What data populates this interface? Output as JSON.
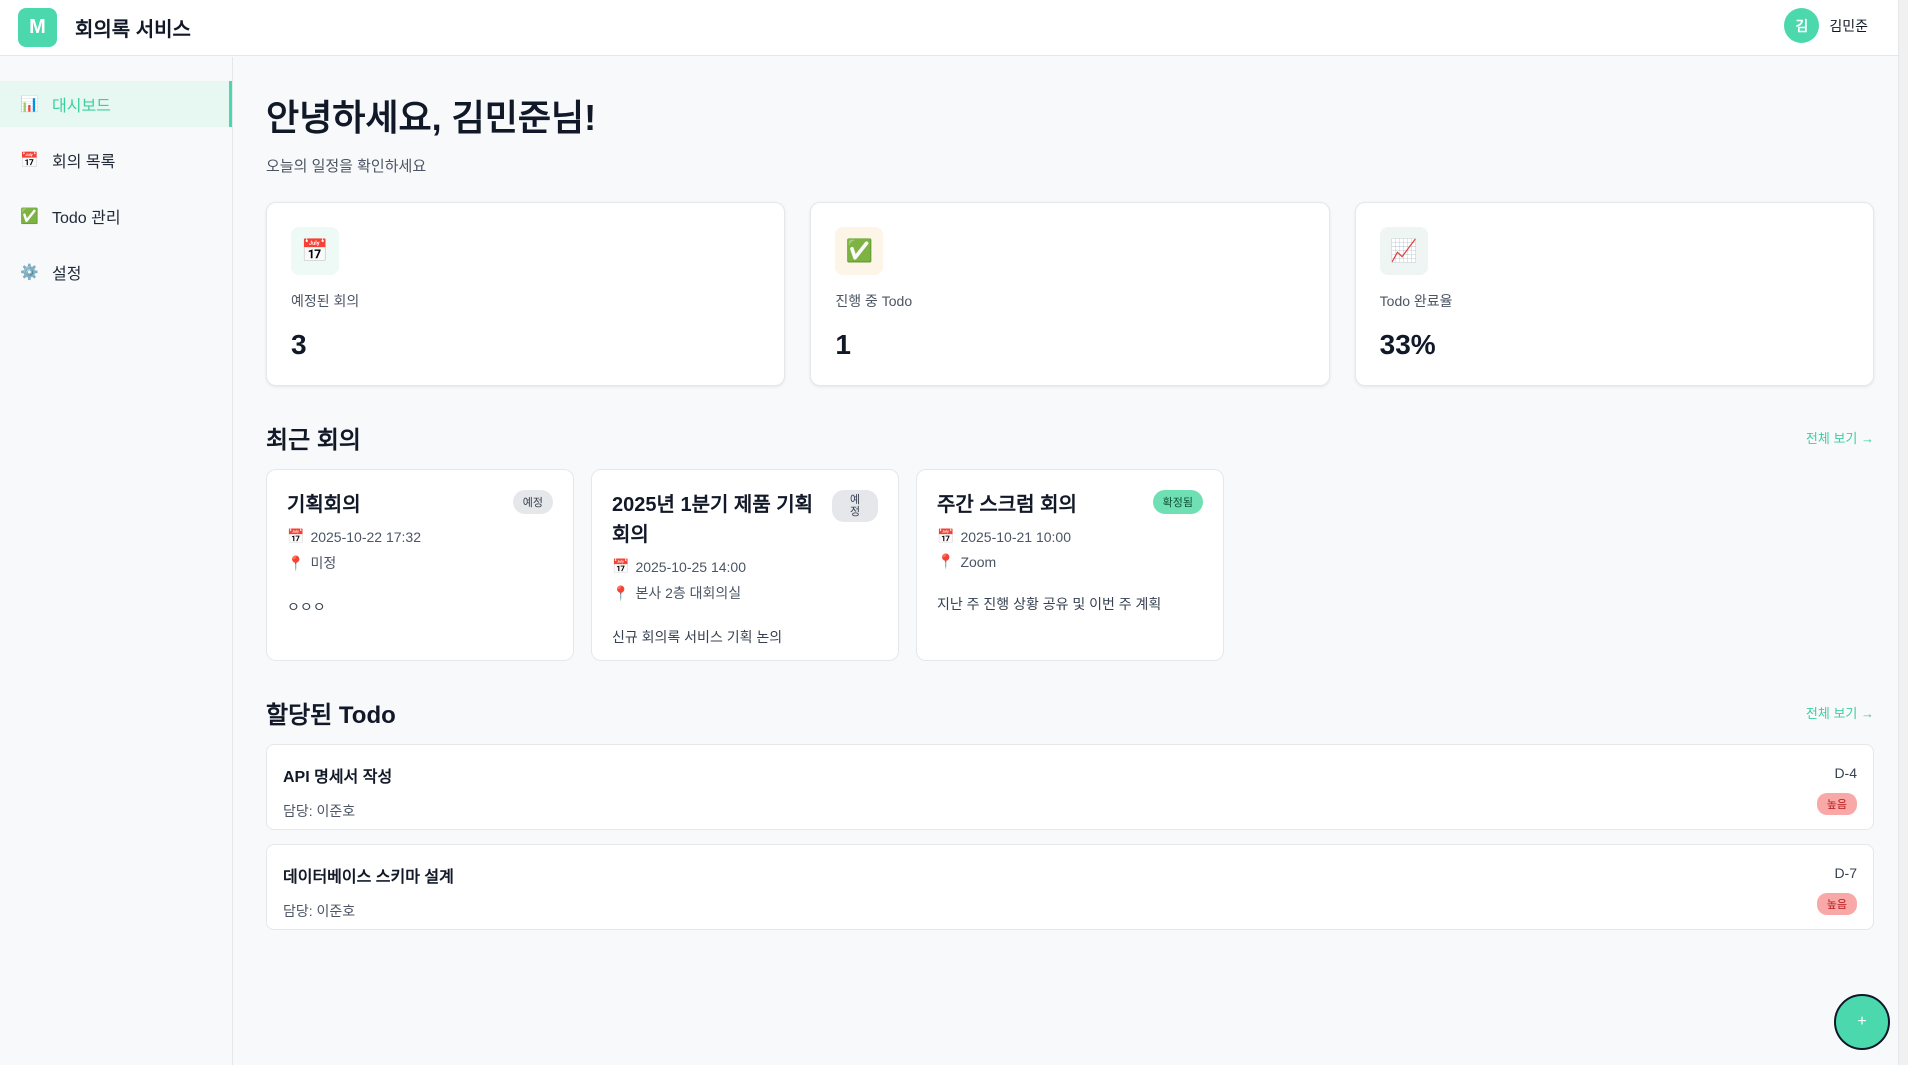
{
  "header": {
    "logo": "M",
    "title": "회의록 서비스",
    "avatar": "김",
    "user_name": "김민준"
  },
  "sidebar": {
    "items": [
      {
        "label": "대시보드",
        "icon": "📊"
      },
      {
        "label": "회의 목록",
        "icon": "📅"
      },
      {
        "label": "Todo 관리",
        "icon": "✅"
      },
      {
        "label": "설정",
        "icon": "⚙️"
      }
    ]
  },
  "main": {
    "greeting": "안녕하세요, 김민준님!",
    "subtitle": "오늘의 일정을 확인하세요",
    "stats": [
      {
        "label": "예정된 회의",
        "value": "3",
        "icon": "📅"
      },
      {
        "label": "진행 중 Todo",
        "value": "1",
        "icon": "✅"
      },
      {
        "label": "Todo 완료율",
        "value": "33%",
        "icon": "📈"
      }
    ],
    "recent": {
      "title": "최근 회의",
      "view_all": "전체 보기 →",
      "items": [
        {
          "title": "기획회의",
          "badge": "예정",
          "date": "2025-10-22 17:32",
          "location": "미정",
          "desc": "ㅇㅇㅇ"
        },
        {
          "title": "2025년 1분기 제품 기획 회의",
          "badge": "예정",
          "date": "2025-10-25 14:00",
          "location": "본사 2층 대회의실",
          "desc": "신규 회의록 서비스 기획 논의"
        },
        {
          "title": "주간 스크럼 회의",
          "badge": "확정됨",
          "date": "2025-10-21 10:00",
          "location": "Zoom",
          "desc": "지난 주 진행 상황 공유 및 이번 주 계획"
        }
      ]
    },
    "todos": {
      "title": "할당된 Todo",
      "view_all": "전체 보기 →",
      "items": [
        {
          "title": "API 명세서 작성",
          "assignee": "담당: 이준호",
          "due": "D-4",
          "priority": "높음"
        },
        {
          "title": "데이터베이스 스키마 설계",
          "assignee": "담당: 이준호",
          "due": "D-7",
          "priority": "높음"
        }
      ]
    }
  },
  "fab": "+"
}
